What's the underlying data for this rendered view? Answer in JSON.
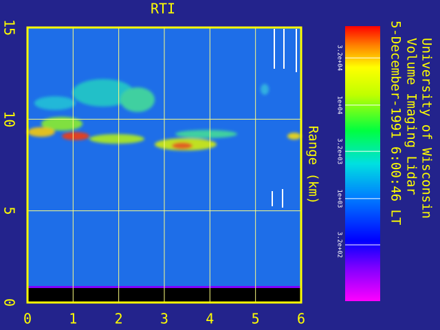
{
  "chart_data": {
    "type": "rti",
    "title": "RTI",
    "y_label": "Range (km)",
    "xlim": [
      0,
      6
    ],
    "xticks": [
      0,
      1,
      2,
      3,
      4,
      5,
      6
    ],
    "ylim": [
      0,
      15
    ],
    "yticks": [
      0,
      5,
      10,
      15
    ],
    "grid": true,
    "colorbar": {
      "scale": "log",
      "lim": [
        80,
        70000
      ],
      "ticks": [
        {
          "value": 320,
          "label": "3.2e+02"
        },
        {
          "value": 1000,
          "label": "1e+03"
        },
        {
          "value": 3200,
          "label": "3.2e+03"
        },
        {
          "value": 10000,
          "label": "1e+04"
        },
        {
          "value": 32000,
          "label": "3.2e+04"
        }
      ]
    },
    "annotations": [
      "University of Wisconsin",
      "Volume Imaging Lidar",
      "5-December-1991  6:00:46 LT"
    ]
  }
}
